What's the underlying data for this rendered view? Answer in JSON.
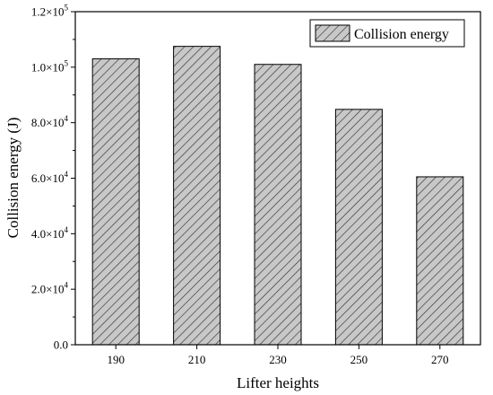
{
  "chart_data": {
    "type": "bar",
    "categories": [
      "190",
      "210",
      "230",
      "250",
      "270"
    ],
    "series": [
      {
        "name": "Collision energy",
        "values": [
          103000,
          107500,
          101000,
          84800,
          60500
        ]
      }
    ],
    "xlabel": "Lifter heights",
    "ylabel": "Collision energy (J)",
    "ylim": [
      0,
      120000
    ],
    "yticks": [
      {
        "value": 0,
        "mantissa": "0.0",
        "exp": ""
      },
      {
        "value": 20000,
        "mantissa": "2.0×10",
        "exp": "4"
      },
      {
        "value": 40000,
        "mantissa": "4.0×10",
        "exp": "4"
      },
      {
        "value": 60000,
        "mantissa": "6.0×10",
        "exp": "4"
      },
      {
        "value": 80000,
        "mantissa": "8.0×10",
        "exp": "4"
      },
      {
        "value": 100000,
        "mantissa": "1.0×10",
        "exp": "5"
      },
      {
        "value": 120000,
        "mantissa": "1.2×10",
        "exp": "5"
      }
    ],
    "grid": false,
    "legend_position": "top-right",
    "bar_pattern": "diagonal-hatch",
    "bar_fill_color": "#c8c8c8",
    "hatch_color": "#333333"
  }
}
